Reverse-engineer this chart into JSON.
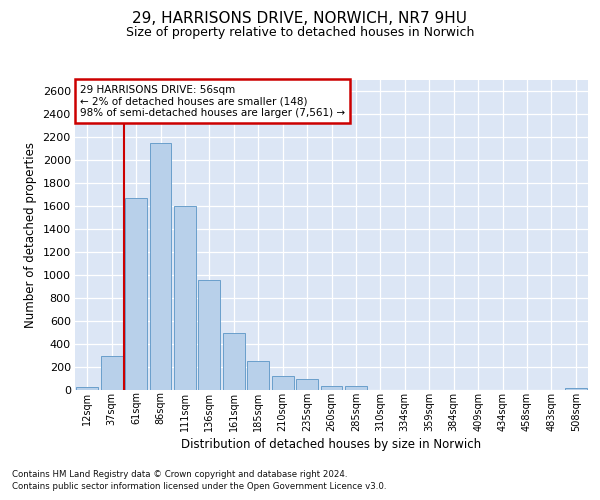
{
  "title_line1": "29, HARRISONS DRIVE, NORWICH, NR7 9HU",
  "title_line2": "Size of property relative to detached houses in Norwich",
  "xlabel": "Distribution of detached houses by size in Norwich",
  "ylabel": "Number of detached properties",
  "categories": [
    "12sqm",
    "37sqm",
    "61sqm",
    "86sqm",
    "111sqm",
    "136sqm",
    "161sqm",
    "185sqm",
    "210sqm",
    "235sqm",
    "260sqm",
    "285sqm",
    "310sqm",
    "334sqm",
    "359sqm",
    "384sqm",
    "409sqm",
    "434sqm",
    "458sqm",
    "483sqm",
    "508sqm"
  ],
  "values": [
    25,
    300,
    1670,
    2150,
    1600,
    960,
    500,
    250,
    120,
    100,
    35,
    35,
    0,
    0,
    0,
    0,
    0,
    0,
    0,
    0,
    20
  ],
  "bar_color": "#b8d0ea",
  "bar_edge_color": "#6a9fcb",
  "vline_x_pos": 1.5,
  "vline_color": "#cc0000",
  "annotation_text": "29 HARRISONS DRIVE: 56sqm\n← 2% of detached houses are smaller (148)\n98% of semi-detached houses are larger (7,561) →",
  "annotation_box_color": "#ffffff",
  "annotation_box_edge": "#cc0000",
  "ylim": [
    0,
    2700
  ],
  "yticks": [
    0,
    200,
    400,
    600,
    800,
    1000,
    1200,
    1400,
    1600,
    1800,
    2000,
    2200,
    2400,
    2600
  ],
  "plot_bg_color": "#dce6f5",
  "grid_color": "#ffffff",
  "footnote1": "Contains HM Land Registry data © Crown copyright and database right 2024.",
  "footnote2": "Contains public sector information licensed under the Open Government Licence v3.0."
}
